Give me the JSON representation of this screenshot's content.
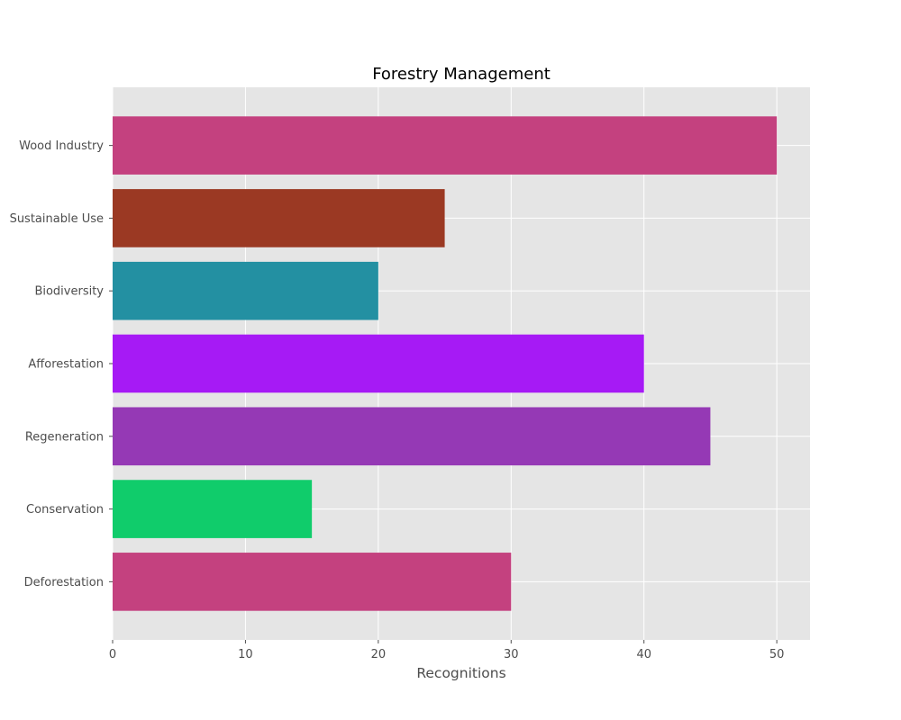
{
  "chart_data": {
    "type": "bar",
    "orientation": "horizontal",
    "title": "Forestry Management",
    "xlabel": "Recognitions",
    "ylabel": "",
    "categories": [
      "Deforestation",
      "Conservation",
      "Regeneration",
      "Afforestation",
      "Biodiversity",
      "Sustainable Use",
      "Wood Industry"
    ],
    "values": [
      30,
      15,
      45,
      40,
      20,
      25,
      50
    ],
    "colors": [
      "#c4417f",
      "#10cc6b",
      "#9539b5",
      "#a61af5",
      "#2390a2",
      "#9b3923",
      "#c4417f"
    ],
    "xlim": [
      0,
      52.5
    ],
    "xticks": [
      0,
      10,
      20,
      30,
      40,
      50
    ],
    "grid": true,
    "legend": "none",
    "plot_background": "#e5e5e5",
    "grid_color": "#ffffff"
  }
}
